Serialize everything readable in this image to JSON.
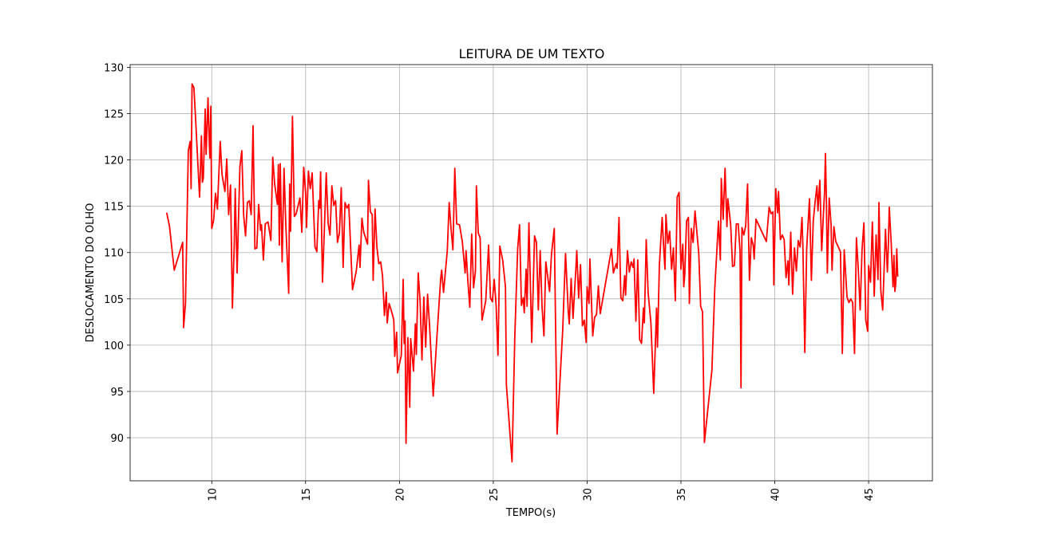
{
  "chart_data": {
    "type": "line",
    "title": "LEITURA DE UM TEXTO",
    "x_label": "TEMPO(s)",
    "y_label": "DESLOCAMENTO DO OLHO",
    "xlim": [
      5.65,
      48.4
    ],
    "ylim": [
      85.35,
      130.3
    ],
    "xticks": [
      10,
      15,
      20,
      25,
      30,
      35,
      40,
      45
    ],
    "yticks": [
      90,
      95,
      100,
      105,
      110,
      115,
      120,
      125,
      130
    ],
    "grid": true,
    "x": [
      7.6,
      7.75,
      8.0,
      8.45,
      8.5,
      8.6,
      8.75,
      8.85,
      8.9,
      8.95,
      9.05,
      9.15,
      9.35,
      9.45,
      9.5,
      9.55,
      9.65,
      9.7,
      9.8,
      9.85,
      9.9,
      9.95,
      10.0,
      10.1,
      10.2,
      10.3,
      10.45,
      10.55,
      10.7,
      10.8,
      10.9,
      11.0,
      11.1,
      11.2,
      11.25,
      11.35,
      11.5,
      11.6,
      11.7,
      11.8,
      11.9,
      12.0,
      12.1,
      12.2,
      12.3,
      12.4,
      12.5,
      12.6,
      12.65,
      12.75,
      12.85,
      13.0,
      13.15,
      13.25,
      13.35,
      13.5,
      13.55,
      13.6,
      13.65,
      13.75,
      13.85,
      13.95,
      14.1,
      14.15,
      14.2,
      14.3,
      14.4,
      14.5,
      14.7,
      14.8,
      14.9,
      15.0,
      15.05,
      15.15,
      15.25,
      15.35,
      15.5,
      15.6,
      15.7,
      15.75,
      15.8,
      15.9,
      16.0,
      16.1,
      16.2,
      16.3,
      16.4,
      16.5,
      16.6,
      16.7,
      16.8,
      16.9,
      17.0,
      17.1,
      17.2,
      17.3,
      17.5,
      17.7,
      17.85,
      17.9,
      18.0,
      18.1,
      18.3,
      18.35,
      18.45,
      18.55,
      18.6,
      18.7,
      18.8,
      18.9,
      19.0,
      19.1,
      19.2,
      19.3,
      19.35,
      19.45,
      19.6,
      19.7,
      19.75,
      19.85,
      19.9,
      20.1,
      20.2,
      20.25,
      20.3,
      20.35,
      20.45,
      20.55,
      20.6,
      20.75,
      20.85,
      20.9,
      21.0,
      21.1,
      21.2,
      21.3,
      21.4,
      21.5,
      21.6,
      21.8,
      22.0,
      22.2,
      22.25,
      22.35,
      22.55,
      22.65,
      22.75,
      22.85,
      22.95,
      23.05,
      23.2,
      23.35,
      23.5,
      23.55,
      23.65,
      23.75,
      23.85,
      23.95,
      24.05,
      24.1,
      24.2,
      24.3,
      24.4,
      24.6,
      24.75,
      24.85,
      24.95,
      25.05,
      25.15,
      25.25,
      25.35,
      25.5,
      25.65,
      25.7,
      26.0,
      26.15,
      26.3,
      26.4,
      26.5,
      26.6,
      26.65,
      26.75,
      26.8,
      26.9,
      27.05,
      27.2,
      27.3,
      27.4,
      27.5,
      27.6,
      27.7,
      27.8,
      28.0,
      28.1,
      28.25,
      28.4,
      28.7,
      28.85,
      29.0,
      29.05,
      29.15,
      29.25,
      29.4,
      29.45,
      29.55,
      29.65,
      29.75,
      29.85,
      29.95,
      30.0,
      30.1,
      30.15,
      30.3,
      30.4,
      30.5,
      30.6,
      30.7,
      31.3,
      31.4,
      31.55,
      31.6,
      31.7,
      31.8,
      31.9,
      32.0,
      32.05,
      32.15,
      32.25,
      32.35,
      32.45,
      32.5,
      32.6,
      32.7,
      32.8,
      32.9,
      33.0,
      33.05,
      33.15,
      33.25,
      33.4,
      33.55,
      33.7,
      33.75,
      33.85,
      34.0,
      34.1,
      34.15,
      34.2,
      34.3,
      34.4,
      34.5,
      34.6,
      34.7,
      34.8,
      34.9,
      35.0,
      35.1,
      35.15,
      35.2,
      35.3,
      35.4,
      35.45,
      35.55,
      35.65,
      35.75,
      35.95,
      36.05,
      36.15,
      36.25,
      36.65,
      36.8,
      37.0,
      37.1,
      37.15,
      37.25,
      37.35,
      37.45,
      37.5,
      37.65,
      37.75,
      37.85,
      37.95,
      38.05,
      38.15,
      38.2,
      38.25,
      38.35,
      38.45,
      38.55,
      38.65,
      38.75,
      38.85,
      38.9,
      39.0,
      39.55,
      39.7,
      39.8,
      39.9,
      39.95,
      40.05,
      40.15,
      40.2,
      40.3,
      40.4,
      40.5,
      40.6,
      40.7,
      40.75,
      40.85,
      40.95,
      41.05,
      41.15,
      41.25,
      41.35,
      41.45,
      41.5,
      41.6,
      41.7,
      41.85,
      41.95,
      42.05,
      42.15,
      42.25,
      42.3,
      42.4,
      42.5,
      42.6,
      42.65,
      42.7,
      42.75,
      42.8,
      42.9,
      43.0,
      43.05,
      43.15,
      43.25,
      43.5,
      43.6,
      43.7,
      43.85,
      43.95,
      44.05,
      44.15,
      44.25,
      44.35,
      44.45,
      44.55,
      44.65,
      44.75,
      44.85,
      44.95,
      45.0,
      45.1,
      45.2,
      45.3,
      45.4,
      45.5,
      45.55,
      45.65,
      45.75,
      45.9,
      46.0,
      46.05,
      46.1,
      46.2,
      46.3,
      46.35,
      46.4,
      46.45,
      46.5,
      46.55
    ],
    "series": [
      {
        "name": "DESLOCAMENTO",
        "color": "#ff0000",
        "values": [
          114.3,
          112.8,
          108.1,
          111.1,
          101.9,
          104.5,
          121,
          122,
          116.9,
          128.2,
          127.8,
          124,
          116,
          122.6,
          117.6,
          118,
          125.5,
          120.6,
          126.7,
          123,
          120.2,
          125.8,
          112.6,
          113.5,
          116.4,
          114.7,
          122,
          118.4,
          116.6,
          120.1,
          114.1,
          117.3,
          104,
          111,
          116.9,
          107.8,
          119.3,
          121.0,
          114,
          111.8,
          115.4,
          115.6,
          114.1,
          123.7,
          110.4,
          110.5,
          115.2,
          112.4,
          113,
          109.2,
          113.1,
          113.3,
          111.3,
          120.3,
          117.4,
          115.2,
          119.5,
          110.8,
          119.6,
          109,
          119.1,
          112.8,
          105.6,
          117.4,
          112.3,
          124.7,
          113.9,
          114.2,
          115.9,
          112.2,
          119.2,
          116.5,
          112.7,
          118.8,
          116.9,
          118.6,
          110.6,
          110.1,
          115.6,
          114.8,
          118.7,
          106.8,
          112.5,
          118.6,
          113.2,
          111.9,
          117.2,
          115.1,
          115.6,
          111.1,
          112.1,
          117.0,
          108.4,
          115.4,
          114.8,
          115.2,
          106,
          108,
          110.8,
          108.4,
          113.7,
          112.2,
          110.9,
          117.8,
          114.4,
          114.1,
          107,
          114.7,
          110.6,
          108.8,
          109,
          107.5,
          103.2,
          105.7,
          102.4,
          104.5,
          103.5,
          102.7,
          98.8,
          101.4,
          97.0,
          98.9,
          107.1,
          100.2,
          102.6,
          89.4,
          100.8,
          93.3,
          100.7,
          97.2,
          102.3,
          99,
          107.8,
          104.8,
          98.4,
          105.2,
          99.8,
          105.5,
          102.3,
          94.5,
          101,
          107.2,
          108.1,
          105.7,
          110.2,
          115.4,
          112.6,
          110.3,
          119.1,
          113.1,
          113.0,
          111.2,
          107.8,
          110.2,
          106.8,
          104.1,
          112,
          106.2,
          108,
          117.2,
          112.1,
          111.6,
          102.7,
          104.8,
          110.8,
          105.1,
          104.7,
          107.1,
          104.4,
          98.9,
          110.7,
          109.2,
          106.3,
          95.7,
          87.4,
          101.1,
          110.4,
          113,
          104.3,
          105.1,
          103.5,
          108.2,
          104.2,
          113.2,
          100.3,
          111.8,
          111.1,
          103.8,
          110.2,
          104.1,
          101,
          109,
          105.8,
          109.8,
          112.6,
          90.4,
          101.6,
          109.9,
          103.5,
          102.3,
          107.2,
          102.9,
          108.2,
          110.2,
          105.1,
          108.7,
          102.1,
          102.7,
          100.3,
          106.3,
          104.5,
          109.3,
          101,
          103,
          103.3,
          106.4,
          103.4,
          110.4,
          107.8,
          108.8,
          108.3,
          113.8,
          105.1,
          104.8,
          107.5,
          105.4,
          110.2,
          107.9,
          109,
          108.4,
          109.3,
          102.6,
          109.2,
          100.6,
          100.2,
          104,
          102.4,
          111.4,
          105.7,
          102.4,
          94.8,
          104,
          99.8,
          108.6,
          113.8,
          109.8,
          108.2,
          114.1,
          111,
          112.3,
          108.2,
          110.5,
          104.8,
          116,
          116.5,
          108.2,
          110.9,
          106.3,
          107.5,
          113.4,
          113.8,
          104.5,
          112.6,
          111.1,
          114.5,
          109.9,
          104.2,
          103.6,
          89.5,
          97.3,
          106,
          113.4,
          109.2,
          118,
          113.6,
          119.1,
          112.8,
          115.8,
          113,
          108.5,
          108.6,
          113.1,
          113.1,
          110.1,
          95.4,
          112.7,
          111.9,
          112.9,
          117.4,
          107,
          111.6,
          110.8,
          109.3,
          113.6,
          111.2,
          114.9,
          114.2,
          114.4,
          106.5,
          116.9,
          114.3,
          116.6,
          111.4,
          111.9,
          111.4,
          107.3,
          109.1,
          106.5,
          112.2,
          105.5,
          110.5,
          108,
          111.3,
          110.6,
          113.8,
          110.5,
          99.2,
          110.4,
          115.8,
          107,
          113.4,
          115.5,
          117.2,
          114.5,
          117.8,
          110.2,
          114.5,
          116.4,
          120.7,
          115.7,
          107.8,
          115.9,
          113,
          108.1,
          112.8,
          111.2,
          110.1,
          99.1,
          110.3,
          105.2,
          104.6,
          105,
          104.6,
          99.1,
          111.6,
          108.2,
          103.8,
          110.3,
          113.2,
          102.7,
          101.5,
          108.6,
          106.8,
          113.3,
          105.3,
          111.9,
          107.1,
          115.4,
          105.9,
          103.8,
          112.5,
          107.9,
          110.6,
          114.9,
          111.2,
          106.3,
          109.7,
          105.8,
          106.7,
          110.4,
          107.4
        ]
      }
    ]
  }
}
